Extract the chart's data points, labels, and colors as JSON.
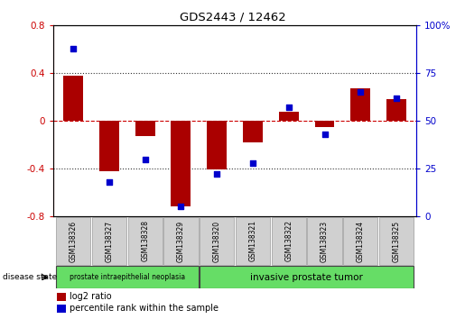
{
  "title": "GDS2443 / 12462",
  "samples": [
    "GSM138326",
    "GSM138327",
    "GSM138328",
    "GSM138329",
    "GSM138320",
    "GSM138321",
    "GSM138322",
    "GSM138323",
    "GSM138324",
    "GSM138325"
  ],
  "log2_ratio": [
    0.38,
    -0.42,
    -0.13,
    -0.72,
    -0.41,
    -0.18,
    0.08,
    -0.05,
    0.27,
    0.18
  ],
  "percentile_rank": [
    88,
    18,
    30,
    5,
    22,
    28,
    57,
    43,
    65,
    62
  ],
  "ylim_left": [
    -0.8,
    0.8
  ],
  "ylim_right": [
    0,
    100
  ],
  "bar_color": "#aa0000",
  "dot_color": "#0000cc",
  "group1_label": "prostate intraepithelial neoplasia",
  "group2_label": "invasive prostate tumor",
  "group1_color": "#66dd66",
  "group2_color": "#66dd66",
  "group1_indices": [
    0,
    1,
    2,
    3
  ],
  "group2_indices": [
    4,
    5,
    6,
    7,
    8,
    9
  ],
  "disease_state_label": "disease state",
  "legend_bar_label": "log2 ratio",
  "legend_dot_label": "percentile rank within the sample",
  "dotted_line_color": "#333333",
  "zero_line_color": "#cc0000",
  "label_bg": "#d0d0d0",
  "left_tick_color": "#cc0000",
  "right_tick_color": "#0000cc"
}
